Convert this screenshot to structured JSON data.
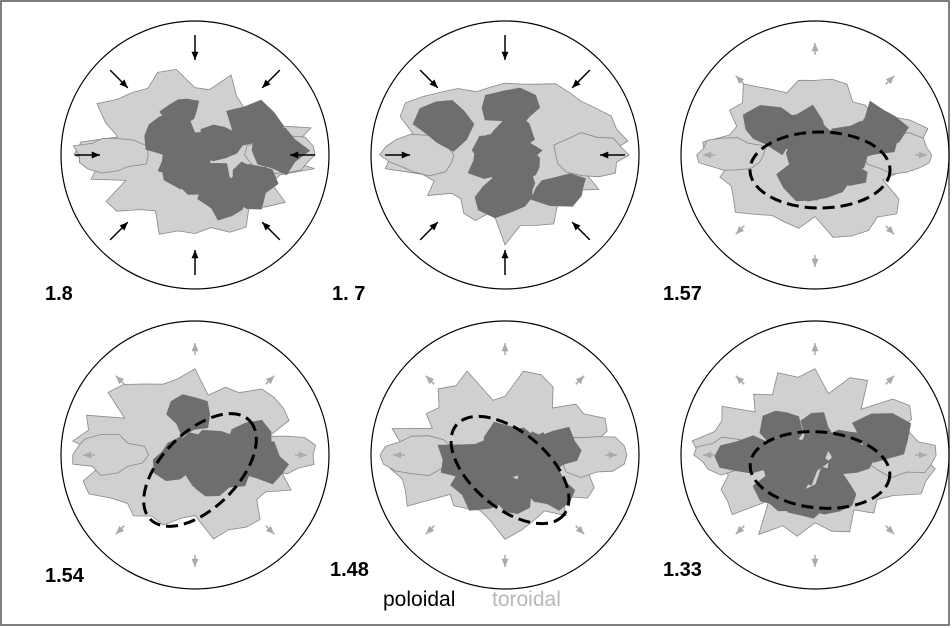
{
  "panels": [
    {
      "label": "1.8"
    },
    {
      "label": "1. 7"
    },
    {
      "label": "1.57"
    },
    {
      "label": "1.54"
    },
    {
      "label": "1.48"
    },
    {
      "label": "1.33"
    }
  ],
  "legend": {
    "poloidal": "poloidal",
    "toroidal": "toroidal"
  }
}
